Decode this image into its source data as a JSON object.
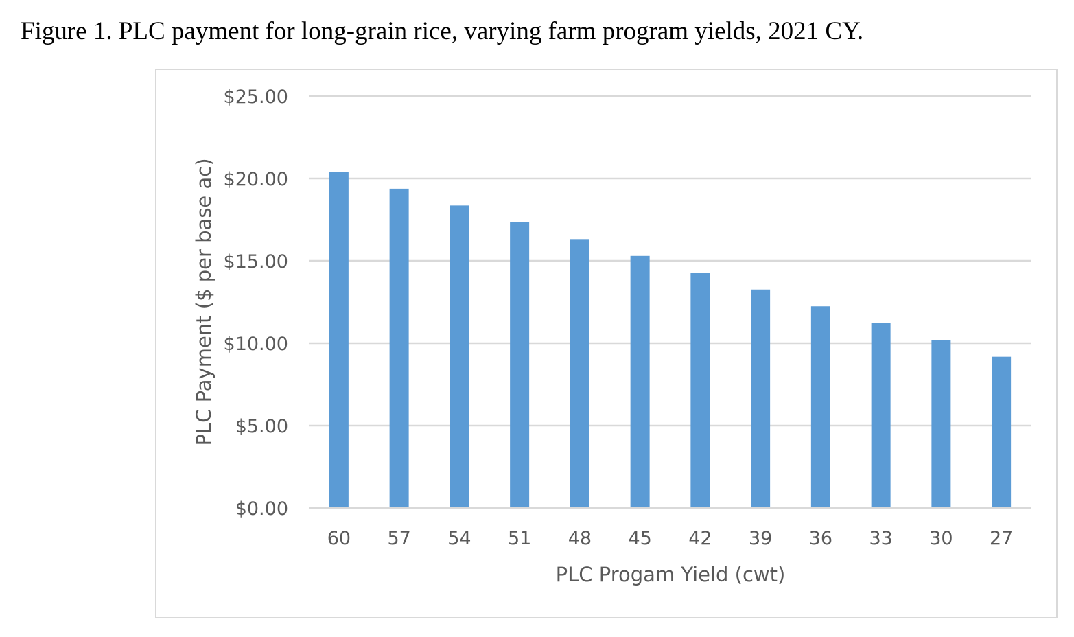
{
  "figure_title": "Figure 1. PLC payment for long-grain rice, varying farm program yields, 2021 CY.",
  "chart_data": {
    "type": "bar",
    "title": "Figure 1. PLC payment for long-grain rice, varying farm program yields, 2021 CY.",
    "xlabel": "PLC Progam Yield (cwt)",
    "ylabel": "PLC Payment ($ per base ac)",
    "categories": [
      "60",
      "57",
      "54",
      "51",
      "48",
      "45",
      "42",
      "39",
      "36",
      "33",
      "30",
      "27"
    ],
    "values": [
      20.4,
      19.38,
      18.36,
      17.34,
      16.32,
      15.3,
      14.28,
      13.26,
      12.24,
      11.22,
      10.2,
      9.18
    ],
    "ylim": [
      0,
      25
    ],
    "yticks": [
      0,
      5,
      10,
      15,
      20,
      25
    ],
    "ytick_labels": [
      "$0.00",
      "$5.00",
      "$10.00",
      "$15.00",
      "$20.00",
      "$25.00"
    ],
    "grid": true,
    "legend": "none",
    "bar_color": "#5b9bd5",
    "grid_color": "#d9d9d9"
  }
}
